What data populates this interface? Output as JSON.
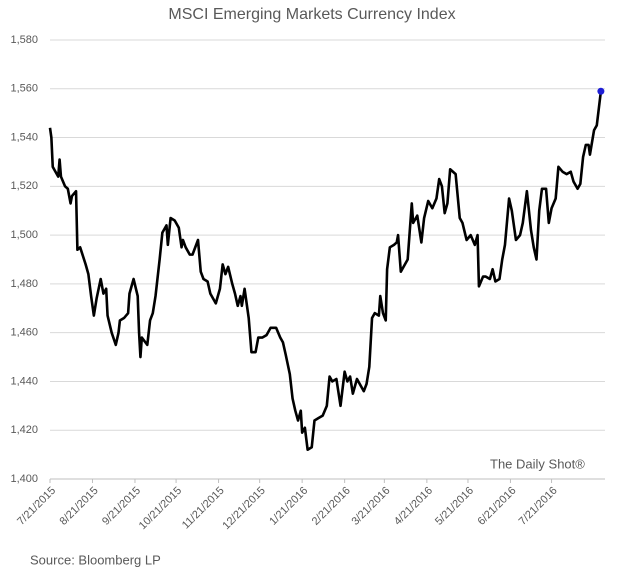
{
  "chart_data": {
    "type": "line",
    "title": "MSCI Emerging Markets Currency Index",
    "source": "Source: Bloomberg LP",
    "annotation": "The Daily Shot®",
    "color": "#000000",
    "marker_color": "#1f1fd6",
    "grid": true,
    "ylim": [
      1400,
      1580
    ],
    "yticks": [
      {
        "value": 1400,
        "label": "1,400"
      },
      {
        "value": 1420,
        "label": "1,420"
      },
      {
        "value": 1440,
        "label": "1,440"
      },
      {
        "value": 1460,
        "label": "1,460"
      },
      {
        "value": 1480,
        "label": "1,480"
      },
      {
        "value": 1500,
        "label": "1,500"
      },
      {
        "value": 1520,
        "label": "1,520"
      },
      {
        "value": 1540,
        "label": "1,540"
      },
      {
        "value": 1560,
        "label": "1,560"
      },
      {
        "value": 1580,
        "label": "1,580"
      }
    ],
    "xlim": [
      "7/21/2015",
      "8/29/2016"
    ],
    "xticks": [
      "7/21/2015",
      "8/21/2015",
      "9/21/2015",
      "10/21/2015",
      "11/21/2015",
      "12/21/2015",
      "1/21/2016",
      "2/21/2016",
      "3/21/2016",
      "4/21/2016",
      "5/21/2016",
      "6/21/2016",
      "7/21/2016"
    ],
    "x": [
      "7/21/2015",
      "7/22/2015",
      "7/23/2015",
      "7/25/2015",
      "7/27/2015",
      "7/28/2015",
      "7/29/2015",
      "8/1/2015",
      "8/3/2015",
      "8/5/2015",
      "8/6/2015",
      "8/9/2015",
      "8/10/2015",
      "8/12/2015",
      "8/16/2015",
      "8/18/2015",
      "8/20/2015",
      "8/22/2015",
      "8/24/2015",
      "8/27/2015",
      "8/29/2015",
      "8/31/2015",
      "9/1/2015",
      "9/4/2015",
      "9/7/2015",
      "9/9/2015",
      "9/10/2015",
      "9/13/2015",
      "9/16/2015",
      "9/17/2015",
      "9/20/2015",
      "9/23/2015",
      "9/24/2015",
      "9/25/2015",
      "9/26/2015",
      "9/30/2015",
      "10/2/2015",
      "10/4/2015",
      "10/6/2015",
      "10/9/2015",
      "10/11/2015",
      "10/14/2015",
      "10/15/2015",
      "10/17/2015",
      "10/20/2015",
      "10/23/2015",
      "10/25/2015",
      "10/26/2015",
      "10/28/2015",
      "10/31/2015",
      "11/2/2015",
      "11/6/2015",
      "11/8/2015",
      "11/10/2015",
      "11/13/2015",
      "11/15/2015",
      "11/17/2015",
      "11/19/2015",
      "11/22/2015",
      "11/24/2015",
      "11/26/2015",
      "11/28/2015",
      "12/1/2015",
      "12/3/2015",
      "12/5/2015",
      "12/7/2015",
      "12/8/2015",
      "12/10/2015",
      "12/13/2015",
      "12/15/2015",
      "12/18/2015",
      "12/20/2015",
      "12/23/2015",
      "12/26/2015",
      "12/29/2015",
      "1/2/2016",
      "1/5/2016",
      "1/7/2016",
      "1/9/2016",
      "1/12/2016",
      "1/14/2016",
      "1/16/2016",
      "1/18/2016",
      "1/20/2016",
      "1/21/2016",
      "1/23/2016",
      "1/25/2016",
      "1/28/2016",
      "1/30/2016",
      "2/2/2016",
      "2/5/2016",
      "2/8/2016",
      "2/10/2016",
      "2/12/2016",
      "2/15/2016",
      "2/18/2016",
      "2/21/2016",
      "2/23/2016",
      "2/25/2016",
      "2/27/2016",
      "3/1/2016",
      "3/3/2016",
      "3/6/2016",
      "3/8/2016",
      "3/10/2016",
      "3/12/2016",
      "3/14/2016",
      "3/17/2016",
      "3/18/2016",
      "3/20/2016",
      "3/22/2016",
      "3/23/2016",
      "3/25/2016",
      "3/28/2016",
      "3/30/2016",
      "3/31/2016",
      "4/2/2016",
      "4/5/2016",
      "4/7/2016",
      "4/10/2016",
      "4/11/2016",
      "4/14/2016",
      "4/17/2016",
      "4/19/2016",
      "4/22/2016",
      "4/25/2016",
      "4/28/2016",
      "4/30/2016",
      "5/2/2016",
      "5/4/2016",
      "5/6/2016",
      "5/8/2016",
      "5/12/2016",
      "5/15/2016",
      "5/17/2016",
      "5/20/2016",
      "5/23/2016",
      "5/26/2016",
      "5/28/2016",
      "5/29/2016",
      "6/1/2016",
      "6/3/2016",
      "6/6/2016",
      "6/8/2016",
      "6/10/2016",
      "6/13/2016",
      "6/15/2016",
      "6/17/2016",
      "6/20/2016",
      "6/22/2016",
      "6/25/2016",
      "6/28/2016",
      "6/30/2016",
      "7/3/2016",
      "7/6/2016",
      "7/8/2016",
      "7/10/2016",
      "7/12/2016",
      "7/14/2016",
      "7/17/2016",
      "7/19/2016",
      "7/21/2016",
      "7/24/2016",
      "7/26/2016",
      "7/29/2016",
      "8/1/2016",
      "8/4/2016",
      "8/6/2016",
      "8/9/2016",
      "8/11/2016",
      "8/13/2016",
      "8/15/2016",
      "8/17/2016",
      "8/18/2016",
      "8/21/2016",
      "8/23/2016",
      "8/26/2016"
    ],
    "values": [
      1544,
      1540,
      1528,
      1526,
      1524,
      1531,
      1524,
      1520,
      1519,
      1513,
      1516,
      1518,
      1494,
      1495,
      1488,
      1484,
      1475,
      1467,
      1474,
      1482,
      1476,
      1478,
      1467,
      1460,
      1455,
      1460,
      1465,
      1466,
      1468,
      1476,
      1482,
      1475,
      1460,
      1450,
      1458,
      1455,
      1465,
      1468,
      1475,
      1490,
      1501,
      1504,
      1496,
      1507,
      1506,
      1503,
      1495,
      1498,
      1495,
      1492,
      1492,
      1498,
      1485,
      1482,
      1481,
      1476,
      1474,
      1472,
      1478,
      1488,
      1484,
      1487,
      1480,
      1476,
      1471,
      1475,
      1471,
      1478,
      1466,
      1452,
      1452,
      1458,
      1458,
      1459,
      1462,
      1462,
      1458,
      1456,
      1451,
      1443,
      1433,
      1428,
      1424,
      1428,
      1419,
      1421,
      1412,
      1413,
      1424,
      1425,
      1426,
      1430,
      1442,
      1440,
      1441,
      1430,
      1444,
      1440,
      1442,
      1435,
      1441,
      1439,
      1436,
      1439,
      1446,
      1466,
      1468,
      1467,
      1475,
      1468,
      1465,
      1486,
      1495,
      1496,
      1497,
      1500,
      1485,
      1488,
      1490,
      1513,
      1505,
      1508,
      1497,
      1507,
      1514,
      1511,
      1515,
      1523,
      1520,
      1509,
      1513,
      1527,
      1525,
      1507,
      1505,
      1498,
      1500,
      1496,
      1500,
      1479,
      1483,
      1483,
      1482,
      1486,
      1481,
      1482,
      1490,
      1496,
      1515,
      1510,
      1498,
      1500,
      1505,
      1518,
      1502,
      1495,
      1490,
      1510,
      1519,
      1519,
      1505,
      1511,
      1515,
      1528,
      1526,
      1525,
      1526,
      1522,
      1519,
      1521,
      1532,
      1537,
      1537,
      1533,
      1543,
      1545,
      1559
    ]
  }
}
